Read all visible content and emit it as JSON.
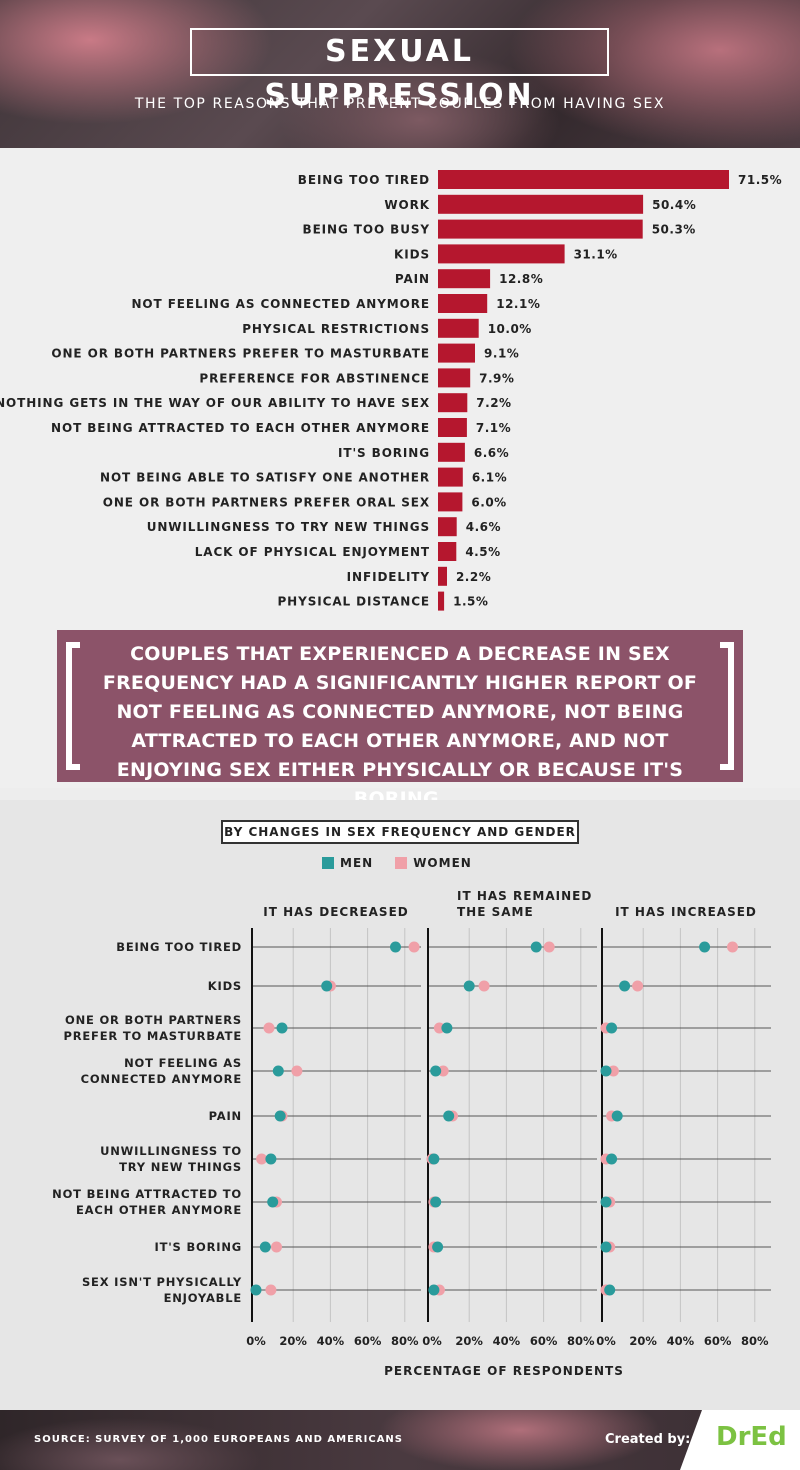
{
  "header": {
    "title": "SEXUAL SUPPRESSION",
    "subtitle": "THE TOP REASONS THAT PREVENT COUPLES FROM HAVING SEX"
  },
  "quote": {
    "text": "COUPLES THAT EXPERIENCED A DECREASE IN SEX FREQUENCY HAD A SIGNIFICANTLY HIGHER REPORT OF NOT FEELING AS CONNECTED ANYMORE, NOT BEING ATTRACTED TO EACH OTHER ANYMORE, AND NOT ENJOYING SEX EITHER PHYSICALLY OR BECAUSE IT'S BORING."
  },
  "dot_section": {
    "title": "BY CHANGES IN SEX FREQUENCY AND GENDER"
  },
  "footer": {
    "source": "SOURCE: SURVEY OF 1,000 EUROPEANS AND AMERICANS",
    "created_by": "Created by:",
    "logo": "DrEd"
  },
  "colors": {
    "bar": "#b5172e",
    "men": "#2a9b9b",
    "women": "#f0a0a8",
    "quote_bg": "#8c5369"
  },
  "chart_data": [
    {
      "type": "bar",
      "orientation": "horizontal",
      "categories": [
        "BEING TOO TIRED",
        "WORK",
        "BEING TOO BUSY",
        "KIDS",
        "PAIN",
        "NOT FEELING AS CONNECTED ANYMORE",
        "PHYSICAL RESTRICTIONS",
        "ONE OR BOTH PARTNERS PREFER TO MASTURBATE",
        "PREFERENCE FOR ABSTINENCE",
        "NOTHING GETS IN THE WAY OF OUR ABILITY TO HAVE SEX",
        "NOT BEING ATTRACTED TO EACH OTHER ANYMORE",
        "IT'S BORING",
        "NOT BEING ABLE TO SATISFY ONE ANOTHER",
        "ONE OR BOTH PARTNERS PREFER ORAL SEX",
        "UNWILLINGNESS TO TRY NEW THINGS",
        "LACK OF PHYSICAL ENJOYMENT",
        "INFIDELITY",
        "PHYSICAL DISTANCE"
      ],
      "values": [
        71.5,
        50.4,
        50.3,
        31.1,
        12.8,
        12.1,
        10.0,
        9.1,
        7.9,
        7.2,
        7.1,
        6.6,
        6.1,
        6.0,
        4.6,
        4.5,
        2.2,
        1.5
      ],
      "value_labels": [
        "71.5%",
        "50.4%",
        "50.3%",
        "31.1%",
        "12.8%",
        "12.1%",
        "10.0%",
        "9.1%",
        "7.9%",
        "7.2%",
        "7.1%",
        "6.6%",
        "6.1%",
        "6.0%",
        "4.6%",
        "4.5%",
        "2.2%",
        "1.5%"
      ],
      "xlim": [
        0,
        80
      ]
    },
    {
      "type": "scatter",
      "variant": "dot-plot",
      "categories": [
        [
          "BEING TOO TIRED"
        ],
        [
          "KIDS"
        ],
        [
          "ONE OR BOTH PARTNERS",
          "PREFER TO MASTURBATE"
        ],
        [
          "NOT FEELING AS",
          "CONNECTED ANYMORE"
        ],
        [
          "PAIN"
        ],
        [
          "UNWILLINGNESS TO",
          "TRY NEW THINGS"
        ],
        [
          "NOT BEING ATTRACTED TO",
          "EACH OTHER ANYMORE"
        ],
        [
          "IT'S BORING"
        ],
        [
          "SEX ISN'T PHYSICALLY",
          "ENJOYABLE"
        ]
      ],
      "panels": [
        {
          "title": [
            "IT HAS DECREASED"
          ],
          "men": [
            75,
            38,
            14,
            12,
            13,
            8,
            9,
            5,
            0
          ],
          "women": [
            85,
            40,
            7,
            22,
            14,
            3,
            11,
            11,
            8
          ]
        },
        {
          "title": [
            "IT HAS REMAINED",
            "THE SAME"
          ],
          "men": [
            56,
            20,
            8,
            2,
            9,
            1,
            2,
            3,
            1
          ],
          "women": [
            63,
            28,
            4,
            6,
            11,
            0,
            1,
            1,
            4
          ]
        },
        {
          "title": [
            "IT HAS INCREASED"
          ],
          "men": [
            53,
            10,
            3,
            0,
            6,
            3,
            0,
            0,
            2
          ],
          "women": [
            68,
            17,
            0,
            4,
            3,
            0,
            2,
            2,
            0
          ]
        }
      ],
      "series": [
        {
          "name": "MEN",
          "color": "#2a9b9b"
        },
        {
          "name": "WOMEN",
          "color": "#f0a0a8"
        }
      ],
      "xticks": [
        "0%",
        "20%",
        "40%",
        "60%",
        "80%"
      ],
      "xlim": [
        0,
        90
      ],
      "xlabel": "PERCENTAGE OF RESPONDENTS"
    }
  ]
}
